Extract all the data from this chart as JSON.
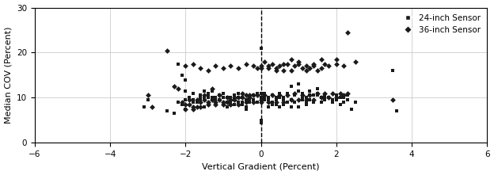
{
  "title": "",
  "xlabel": "Vertical Gradient (Percent)",
  "ylabel": "Median COV (Percent)",
  "xlim": [
    -6,
    6
  ],
  "ylim": [
    0,
    30
  ],
  "xticks": [
    -6,
    -4,
    -2,
    0,
    2,
    4,
    6
  ],
  "yticks": [
    0,
    10,
    20,
    30
  ],
  "vline_x": 0,
  "legend_labels": [
    "24-inch Sensor",
    "36-inch Sensor"
  ],
  "sensor24_color": "#1a1a1a",
  "sensor36_color": "#1a1a1a",
  "background_color": "#ffffff",
  "grid_color": "#cccccc",
  "sensor24_marker": "s",
  "sensor36_marker": "D",
  "sensor24_size": 12,
  "sensor36_size": 12,
  "sensor24_data": [
    [
      -2.5,
      7.0
    ],
    [
      -2.3,
      6.5
    ],
    [
      -2.2,
      17.5
    ],
    [
      -2.1,
      15.0
    ],
    [
      -2.0,
      14.0
    ],
    [
      -2.0,
      9.5
    ],
    [
      -1.9,
      10.0
    ],
    [
      -1.8,
      9.0
    ],
    [
      -1.8,
      9.5
    ],
    [
      -1.7,
      9.0
    ],
    [
      -1.6,
      9.5
    ],
    [
      -1.6,
      10.5
    ],
    [
      -1.5,
      10.0
    ],
    [
      -1.5,
      11.5
    ],
    [
      -1.4,
      10.0
    ],
    [
      -1.4,
      10.5
    ],
    [
      -1.3,
      9.5
    ],
    [
      -1.3,
      10.0
    ],
    [
      -1.2,
      9.5
    ],
    [
      -1.2,
      10.0
    ],
    [
      -1.1,
      10.5
    ],
    [
      -1.0,
      10.0
    ],
    [
      -1.0,
      11.0
    ],
    [
      -0.9,
      10.0
    ],
    [
      -0.9,
      9.0
    ],
    [
      -0.8,
      8.5
    ],
    [
      -0.8,
      10.0
    ],
    [
      -0.7,
      9.5
    ],
    [
      -0.7,
      10.5
    ],
    [
      -0.6,
      10.0
    ],
    [
      -0.6,
      11.0
    ],
    [
      -0.5,
      9.0
    ],
    [
      -0.5,
      10.0
    ],
    [
      -0.4,
      8.0
    ],
    [
      -0.4,
      7.5
    ],
    [
      -0.3,
      9.0
    ],
    [
      -0.3,
      10.0
    ],
    [
      -0.2,
      9.5
    ],
    [
      -0.2,
      10.5
    ],
    [
      -0.1,
      11.0
    ],
    [
      -0.1,
      9.0
    ],
    [
      0.0,
      21.0
    ],
    [
      0.0,
      10.0
    ],
    [
      0.0,
      9.0
    ],
    [
      0.0,
      5.0
    ],
    [
      0.0,
      4.5
    ],
    [
      0.1,
      10.0
    ],
    [
      0.1,
      11.0
    ],
    [
      0.2,
      10.0
    ],
    [
      0.2,
      9.5
    ],
    [
      0.3,
      10.5
    ],
    [
      0.3,
      9.0
    ],
    [
      0.4,
      8.5
    ],
    [
      0.4,
      10.0
    ],
    [
      0.5,
      10.0
    ],
    [
      0.5,
      11.0
    ],
    [
      0.6,
      10.0
    ],
    [
      0.6,
      9.5
    ],
    [
      0.7,
      10.5
    ],
    [
      0.7,
      9.0
    ],
    [
      0.8,
      9.5
    ],
    [
      0.8,
      12.5
    ],
    [
      0.9,
      10.5
    ],
    [
      0.9,
      9.0
    ],
    [
      1.0,
      11.5
    ],
    [
      1.0,
      13.0
    ],
    [
      1.1,
      10.0
    ],
    [
      1.1,
      9.5
    ],
    [
      1.2,
      10.0
    ],
    [
      1.2,
      9.0
    ],
    [
      1.3,
      10.5
    ],
    [
      1.3,
      11.5
    ],
    [
      1.4,
      10.5
    ],
    [
      1.5,
      12.0
    ],
    [
      1.6,
      9.0
    ],
    [
      1.7,
      9.5
    ],
    [
      1.8,
      10.0
    ],
    [
      1.9,
      9.5
    ],
    [
      2.0,
      9.5
    ],
    [
      2.1,
      10.0
    ],
    [
      2.2,
      9.0
    ],
    [
      2.3,
      10.5
    ],
    [
      2.4,
      7.5
    ],
    [
      2.5,
      9.0
    ],
    [
      3.5,
      16.0
    ],
    [
      3.6,
      7.0
    ],
    [
      -3.0,
      9.5
    ],
    [
      -3.1,
      8.0
    ],
    [
      -1.5,
      8.0
    ],
    [
      -1.4,
      11.0
    ],
    [
      -1.3,
      11.5
    ],
    [
      -1.2,
      10.0
    ],
    [
      -1.1,
      9.5
    ],
    [
      -0.9,
      8.0
    ],
    [
      -0.8,
      9.0
    ],
    [
      -0.7,
      8.5
    ],
    [
      -0.5,
      8.5
    ],
    [
      -0.4,
      9.5
    ],
    [
      0.2,
      8.0
    ],
    [
      0.3,
      8.5
    ],
    [
      0.4,
      9.5
    ],
    [
      0.5,
      8.0
    ],
    [
      0.6,
      8.5
    ],
    [
      0.8,
      8.0
    ],
    [
      1.0,
      8.0
    ],
    [
      1.2,
      8.5
    ],
    [
      1.4,
      9.0
    ],
    [
      1.5,
      10.5
    ],
    [
      1.6,
      10.0
    ],
    [
      1.7,
      10.0
    ],
    [
      1.9,
      9.0
    ],
    [
      2.1,
      8.5
    ],
    [
      2.3,
      9.5
    ],
    [
      -2.0,
      11.5
    ],
    [
      -1.8,
      11.0
    ],
    [
      -1.6,
      10.0
    ],
    [
      -0.6,
      9.0
    ],
    [
      -0.3,
      9.5
    ],
    [
      0.0,
      11.0
    ],
    [
      0.1,
      9.5
    ],
    [
      0.7,
      11.0
    ],
    [
      0.9,
      10.5
    ],
    [
      1.1,
      11.0
    ],
    [
      1.3,
      9.5
    ],
    [
      1.5,
      11.0
    ],
    [
      1.7,
      10.5
    ],
    [
      2.0,
      10.5
    ],
    [
      2.2,
      10.0
    ],
    [
      -2.2,
      9.0
    ],
    [
      -2.1,
      8.5
    ],
    [
      -2.0,
      7.5
    ]
  ],
  "sensor36_data": [
    [
      -3.0,
      10.5
    ],
    [
      -2.9,
      8.0
    ],
    [
      -2.5,
      20.5
    ],
    [
      -2.3,
      12.5
    ],
    [
      -2.2,
      12.0
    ],
    [
      -2.1,
      9.0
    ],
    [
      -2.0,
      8.5
    ],
    [
      -1.9,
      8.5
    ],
    [
      -1.8,
      8.0
    ],
    [
      -1.7,
      8.0
    ],
    [
      -1.6,
      9.0
    ],
    [
      -1.5,
      9.5
    ],
    [
      -1.4,
      9.0
    ],
    [
      -1.3,
      12.0
    ],
    [
      -1.2,
      9.0
    ],
    [
      -1.1,
      9.5
    ],
    [
      -1.0,
      9.0
    ],
    [
      -0.9,
      9.0
    ],
    [
      -0.8,
      9.5
    ],
    [
      -0.7,
      9.5
    ],
    [
      -0.6,
      10.0
    ],
    [
      -0.5,
      11.0
    ],
    [
      -0.4,
      10.5
    ],
    [
      -0.3,
      10.5
    ],
    [
      -0.2,
      10.5
    ],
    [
      -0.1,
      16.5
    ],
    [
      0.0,
      17.0
    ],
    [
      0.0,
      16.5
    ],
    [
      0.0,
      9.5
    ],
    [
      0.1,
      18.0
    ],
    [
      0.2,
      16.5
    ],
    [
      0.3,
      17.5
    ],
    [
      0.4,
      16.5
    ],
    [
      0.5,
      17.0
    ],
    [
      0.6,
      16.0
    ],
    [
      0.7,
      17.5
    ],
    [
      0.8,
      18.5
    ],
    [
      0.9,
      17.0
    ],
    [
      1.0,
      18.0
    ],
    [
      1.1,
      16.5
    ],
    [
      1.2,
      17.0
    ],
    [
      1.3,
      16.5
    ],
    [
      1.4,
      17.5
    ],
    [
      1.5,
      16.0
    ],
    [
      1.6,
      18.5
    ],
    [
      1.7,
      17.5
    ],
    [
      2.0,
      18.5
    ],
    [
      2.3,
      24.5
    ],
    [
      2.5,
      18.0
    ],
    [
      3.5,
      9.5
    ],
    [
      -2.0,
      17.0
    ],
    [
      -1.8,
      17.5
    ],
    [
      -1.6,
      16.5
    ],
    [
      -1.4,
      16.0
    ],
    [
      -1.2,
      17.0
    ],
    [
      -1.0,
      16.5
    ],
    [
      -0.8,
      17.0
    ],
    [
      -0.6,
      16.5
    ],
    [
      -0.4,
      17.5
    ],
    [
      -0.2,
      17.0
    ],
    [
      0.2,
      17.0
    ],
    [
      0.4,
      16.0
    ],
    [
      0.6,
      17.5
    ],
    [
      0.8,
      16.0
    ],
    [
      1.0,
      17.5
    ],
    [
      1.2,
      16.0
    ],
    [
      1.4,
      17.0
    ],
    [
      1.6,
      16.5
    ],
    [
      1.8,
      17.0
    ],
    [
      2.0,
      17.5
    ],
    [
      2.2,
      17.0
    ],
    [
      -1.9,
      9.5
    ],
    [
      -1.7,
      9.5
    ],
    [
      -1.5,
      10.5
    ],
    [
      -1.3,
      9.5
    ],
    [
      -1.1,
      10.5
    ],
    [
      -0.9,
      10.0
    ],
    [
      -0.7,
      10.0
    ],
    [
      -0.5,
      10.0
    ],
    [
      -0.3,
      10.0
    ],
    [
      -0.1,
      10.5
    ],
    [
      0.1,
      10.5
    ],
    [
      0.3,
      10.5
    ],
    [
      0.5,
      10.5
    ],
    [
      0.7,
      10.5
    ],
    [
      0.9,
      11.0
    ],
    [
      1.1,
      10.5
    ],
    [
      1.3,
      10.5
    ],
    [
      1.5,
      11.0
    ],
    [
      1.7,
      11.0
    ],
    [
      1.9,
      11.0
    ],
    [
      2.1,
      11.0
    ],
    [
      2.3,
      11.0
    ],
    [
      -2.0,
      7.5
    ],
    [
      -1.8,
      7.5
    ],
    [
      -1.6,
      8.0
    ],
    [
      -1.4,
      8.5
    ],
    [
      -1.2,
      8.5
    ],
    [
      -1.0,
      8.5
    ],
    [
      -0.8,
      8.5
    ],
    [
      -0.6,
      8.5
    ],
    [
      -0.4,
      9.0
    ],
    [
      -0.2,
      9.0
    ],
    [
      0.0,
      9.0
    ],
    [
      0.2,
      9.0
    ],
    [
      0.4,
      9.0
    ],
    [
      0.6,
      9.0
    ],
    [
      0.8,
      9.5
    ],
    [
      1.0,
      9.5
    ],
    [
      1.2,
      9.5
    ],
    [
      1.4,
      9.5
    ],
    [
      1.6,
      10.0
    ],
    [
      1.8,
      10.0
    ],
    [
      2.0,
      10.0
    ],
    [
      2.2,
      10.5
    ]
  ]
}
